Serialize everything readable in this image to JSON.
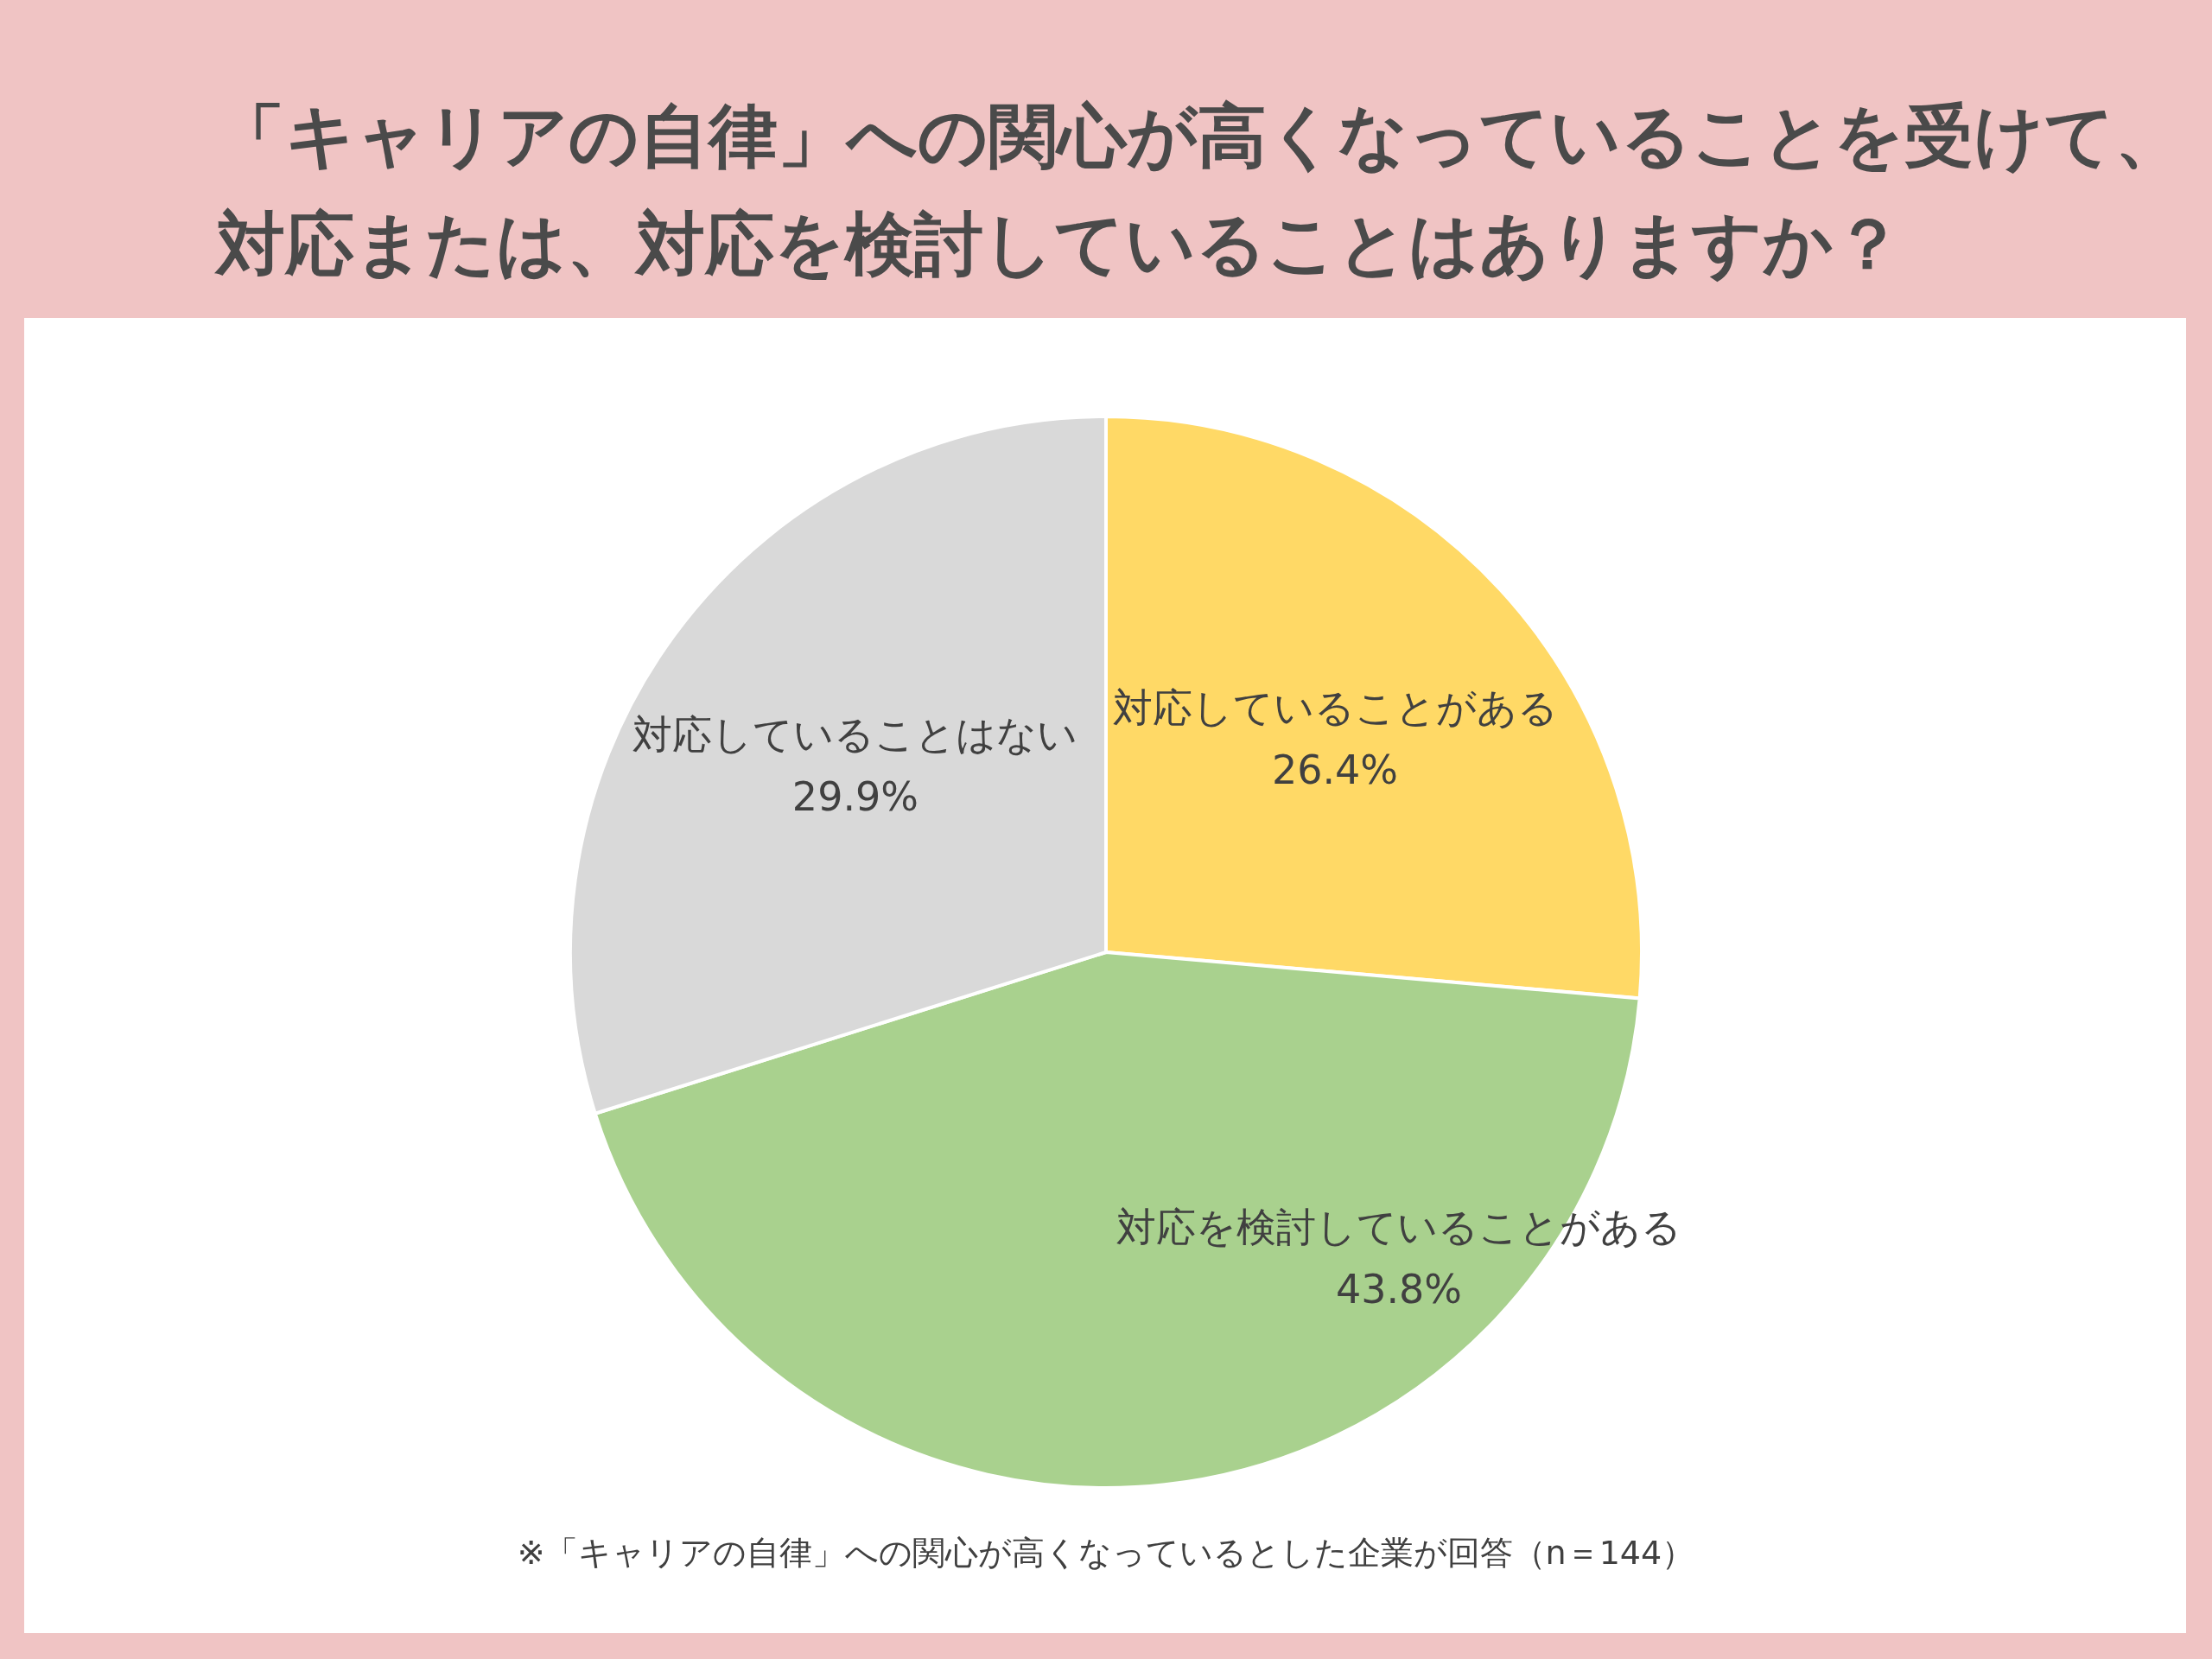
{
  "chart_data": {
    "type": "pie",
    "title": "「キャリアの自律」への関心が高くなっていることを受けて、対応または、対応を検討していることはありますか？",
    "categories": [
      "対応していることがある",
      "対応を検討していることがある",
      "対応していることはない"
    ],
    "values": [
      26.4,
      43.8,
      29.9
    ],
    "colors": [
      "#ffd966",
      "#a9d18e",
      "#d9d9d9"
    ],
    "value_labels": [
      "26.4%",
      "43.8%",
      "29.9%"
    ],
    "annotations": [
      "※「キャリアの自律」への関心が高くなっているとした企業が回答（n＝144）"
    ]
  }
}
